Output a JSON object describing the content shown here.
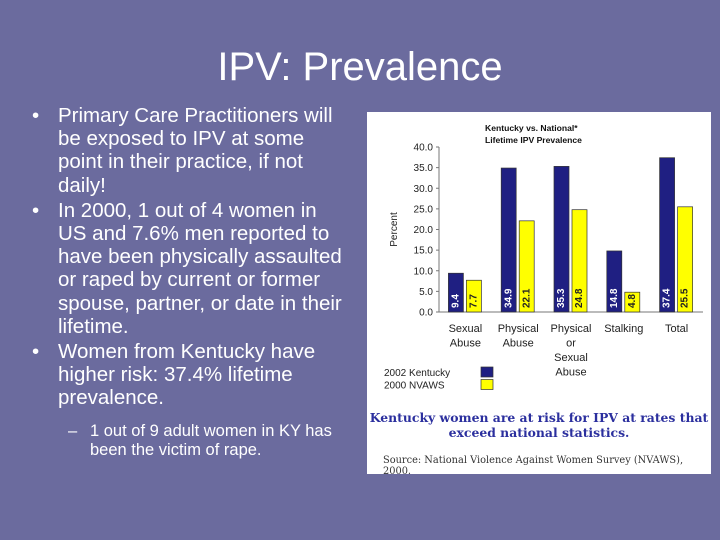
{
  "slide": {
    "title": "IPV: Prevalence",
    "bullets": [
      "Primary Care Practitioners will be exposed to IPV at some point in their practice, if not daily!",
      "In 2000, 1 out of 4 women in US and 7.6% men reported to have been physically assaulted or raped by current or former spouse, partner, or date in their lifetime.",
      "Women from Kentucky have higher risk: 37.4% lifetime prevalence."
    ],
    "sub_bullets": [
      "1 out of 9 adult women in KY has been the victim of rape."
    ]
  },
  "chart_data": {
    "type": "bar",
    "title": "Kentucky vs. National* Lifetime IPV Prevalence",
    "ylabel": "Percent",
    "ylim": [
      0,
      40
    ],
    "yticks": [
      "0.0",
      "5.0",
      "10.0",
      "15.0",
      "20.0",
      "25.0",
      "30.0",
      "35.0",
      "40.0"
    ],
    "categories": [
      [
        "Sexual",
        "Abuse"
      ],
      [
        "Physical",
        "Abuse"
      ],
      [
        "Physical",
        "or",
        "Sexual",
        "Abuse"
      ],
      [
        "Stalking"
      ],
      [
        "Total"
      ]
    ],
    "series": [
      {
        "name": "2002 Kentucky",
        "values": [
          9.4,
          34.9,
          35.3,
          14.8,
          37.4
        ],
        "labels": [
          "9.4",
          "34.9",
          "35.3",
          "14.8",
          "37.4"
        ],
        "color": "#1f1f82"
      },
      {
        "name": "2000 NVAWS",
        "values": [
          7.7,
          22.1,
          24.8,
          4.8,
          25.5
        ],
        "labels": [
          "7.7",
          "22.1",
          "24.8",
          "4.8",
          "25.5"
        ],
        "color": "#ffff00"
      }
    ],
    "caption": "Kentucky women are at risk for IPV at rates that exceed national statistics.",
    "source": "Source: National Violence Against Women Survey (NVAWS), 2000.",
    "grid": false,
    "legend_position": "bottom-left"
  },
  "colors": {
    "background": "#6b6b9e",
    "kentucky": "#1f1f82",
    "national": "#ffff00",
    "caption": "#2b2f9e"
  }
}
